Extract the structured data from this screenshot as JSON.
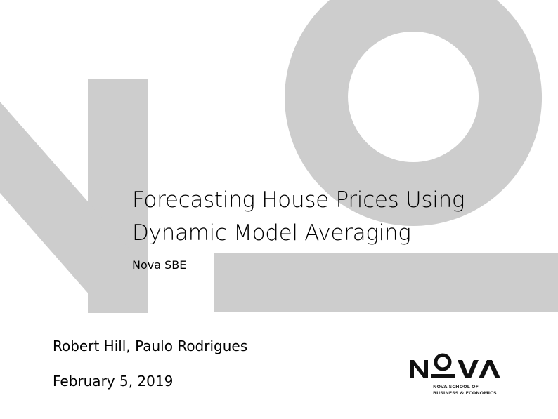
{
  "slide": {
    "title_line1": "Forecasting House Prices Using",
    "title_line2": "Dynamic Model Averaging",
    "institute": "Nova SBE",
    "authors": "Robert Hill, Paulo Rodrigues",
    "date": "February 5, 2019"
  },
  "logo": {
    "wordmark": "NOVA",
    "line1": "NOVA SCHOOL OF",
    "line2": "BUSINESS & ECONOMICS"
  },
  "colors": {
    "watermark": "#cdcdcd",
    "text": "#000000"
  }
}
